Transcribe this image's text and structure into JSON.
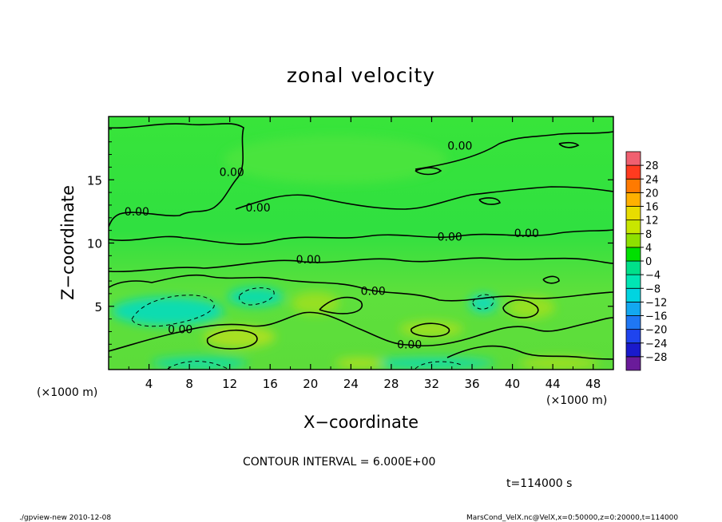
{
  "chart_data": {
    "type": "heatmap",
    "title": "zonal velocity",
    "xlabel": "X−coordinate",
    "ylabel": "Z−coordinate",
    "x_unit_left": "(×1000 m)",
    "x_unit_right": "(×1000 m)",
    "xlim": [
      0,
      50
    ],
    "ylim": [
      0,
      20
    ],
    "x_ticks": [
      4,
      8,
      12,
      16,
      20,
      24,
      28,
      32,
      36,
      40,
      44,
      48
    ],
    "x_tick_labels": [
      "4",
      "8",
      "12",
      "16",
      "20",
      "24",
      "28",
      "32",
      "36",
      "40",
      "44",
      "48"
    ],
    "y_ticks": [
      5,
      10,
      15
    ],
    "y_tick_labels": [
      "5",
      "10",
      "15"
    ],
    "colorbar": {
      "levels": [
        -32,
        -28,
        -24,
        -20,
        -16,
        -12,
        -8,
        -4,
        0,
        4,
        8,
        12,
        16,
        20,
        24,
        28,
        32
      ],
      "labels": [
        "28",
        "24",
        "20",
        "16",
        "12",
        "8",
        "4",
        "0",
        "−4",
        "−8",
        "−12",
        "−16",
        "−20",
        "−24",
        "−28"
      ],
      "colors": [
        "#6a1b9a",
        "#1a1acc",
        "#1f44ee",
        "#1f77f4",
        "#13a8f0",
        "#00d4e0",
        "#00e6b4",
        "#00e08a",
        "#00e000",
        "#8ee000",
        "#c8e600",
        "#e8dc00",
        "#ffb000",
        "#ff7a00",
        "#ff3b1f",
        "#f06070"
      ]
    },
    "contour_labels": [
      {
        "text": "0.00",
        "x": 34.8,
        "z": 17.7
      },
      {
        "text": "0.00",
        "x": 12.2,
        "z": 15.6
      },
      {
        "text": "0.00",
        "x": 14.8,
        "z": 12.8
      },
      {
        "text": "0.00",
        "x": 2.8,
        "z": 12.5
      },
      {
        "text": "0.00",
        "x": 33.8,
        "z": 10.5
      },
      {
        "text": "0.00",
        "x": 41.4,
        "z": 10.8
      },
      {
        "text": "0.00",
        "x": 19.8,
        "z": 8.7
      },
      {
        "text": "0.00",
        "x": 26.2,
        "z": 6.2
      },
      {
        "text": "0.00",
        "x": 7.1,
        "z": 3.2
      },
      {
        "text": "0.00",
        "x": 29.8,
        "z": 2.0
      }
    ],
    "contour_interval_text": "CONTOUR INTERVAL = 6.000E+00",
    "time_text": "t=114000 s",
    "footer_left": "./gpview-new  2010-12-08",
    "footer_right": "MarsCond_VelX.nc@VelX,x=0:50000,z=0:20000,t=114000"
  }
}
